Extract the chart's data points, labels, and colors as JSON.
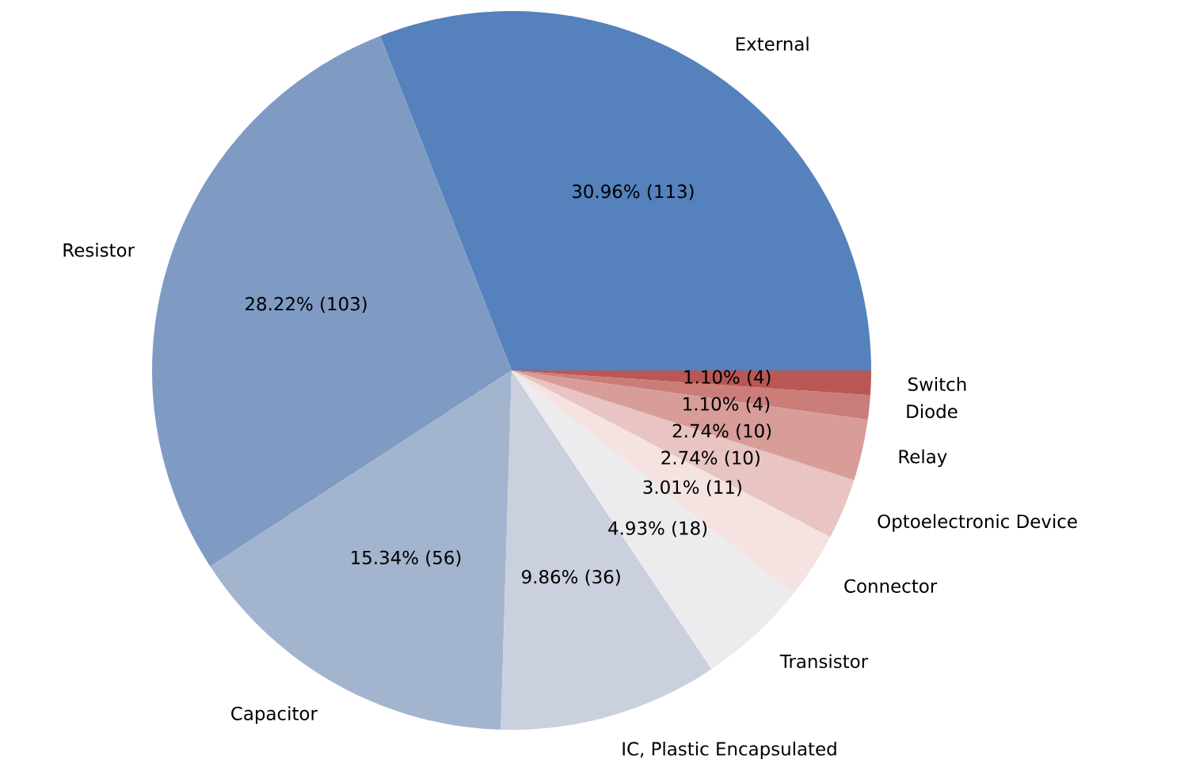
{
  "chart_data": {
    "type": "pie",
    "categories": [
      "External",
      "Resistor",
      "Capacitor",
      "IC, Plastic Encapsulated",
      "Transistor",
      "Connector",
      "Optoelectronic Device",
      "Relay",
      "Diode",
      "Switch"
    ],
    "values": [
      113,
      103,
      56,
      36,
      18,
      11,
      10,
      10,
      4,
      4
    ],
    "colors": [
      "#5581bc",
      "#7f9bc4",
      "#a3b4cf",
      "#cbd0de",
      "#ececee",
      "#f4e3e1",
      "#e8c4c2",
      "#d89d99",
      "#cb7d7a",
      "#b95755"
    ],
    "value_labels": [
      "30.96% (113)",
      "28.22% (103)",
      "15.34% (56)",
      "9.86% (36)",
      "4.93% (18)",
      "3.01% (11)",
      "2.74% (10)",
      "2.74% (10)",
      "1.10% (4)",
      "1.10% (4)"
    ]
  }
}
